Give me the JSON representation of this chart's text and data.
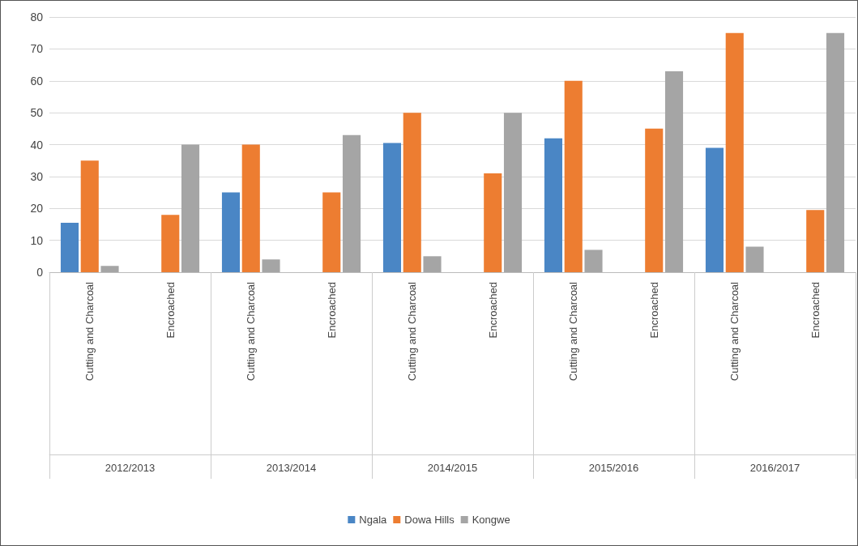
{
  "chart_data": {
    "type": "bar",
    "categories": [
      "Cutting and Charcoal",
      "Encroached",
      "Cutting and Charcoal",
      "Encroached",
      "Cutting and Charcoal",
      "Encroached",
      "Cutting and Charcoal",
      "Encroached",
      "Cutting and Charcoal",
      "Encroached"
    ],
    "annotations": [
      "2012/2013",
      "2013/2014",
      "2014/2015",
      "2015/2016",
      "2016/2017"
    ],
    "series": [
      {
        "name": "Ngala",
        "color": "#4a86c5",
        "values": [
          15.5,
          null,
          25,
          null,
          40.5,
          null,
          42,
          null,
          39,
          null
        ]
      },
      {
        "name": "Dowa Hills",
        "color": "#ed7d31",
        "values": [
          35,
          18,
          40,
          25,
          50,
          31,
          60,
          45,
          75,
          19.5
        ]
      },
      {
        "name": "Kongwe",
        "color": "#a5a5a5",
        "values": [
          2,
          40,
          4,
          43,
          5,
          50,
          7,
          63,
          8,
          75
        ]
      }
    ],
    "ylim": [
      0,
      80
    ],
    "yticks": [
      0,
      10,
      20,
      30,
      40,
      50,
      60,
      70,
      80
    ],
    "grid": "y",
    "legend": "bottom"
  }
}
